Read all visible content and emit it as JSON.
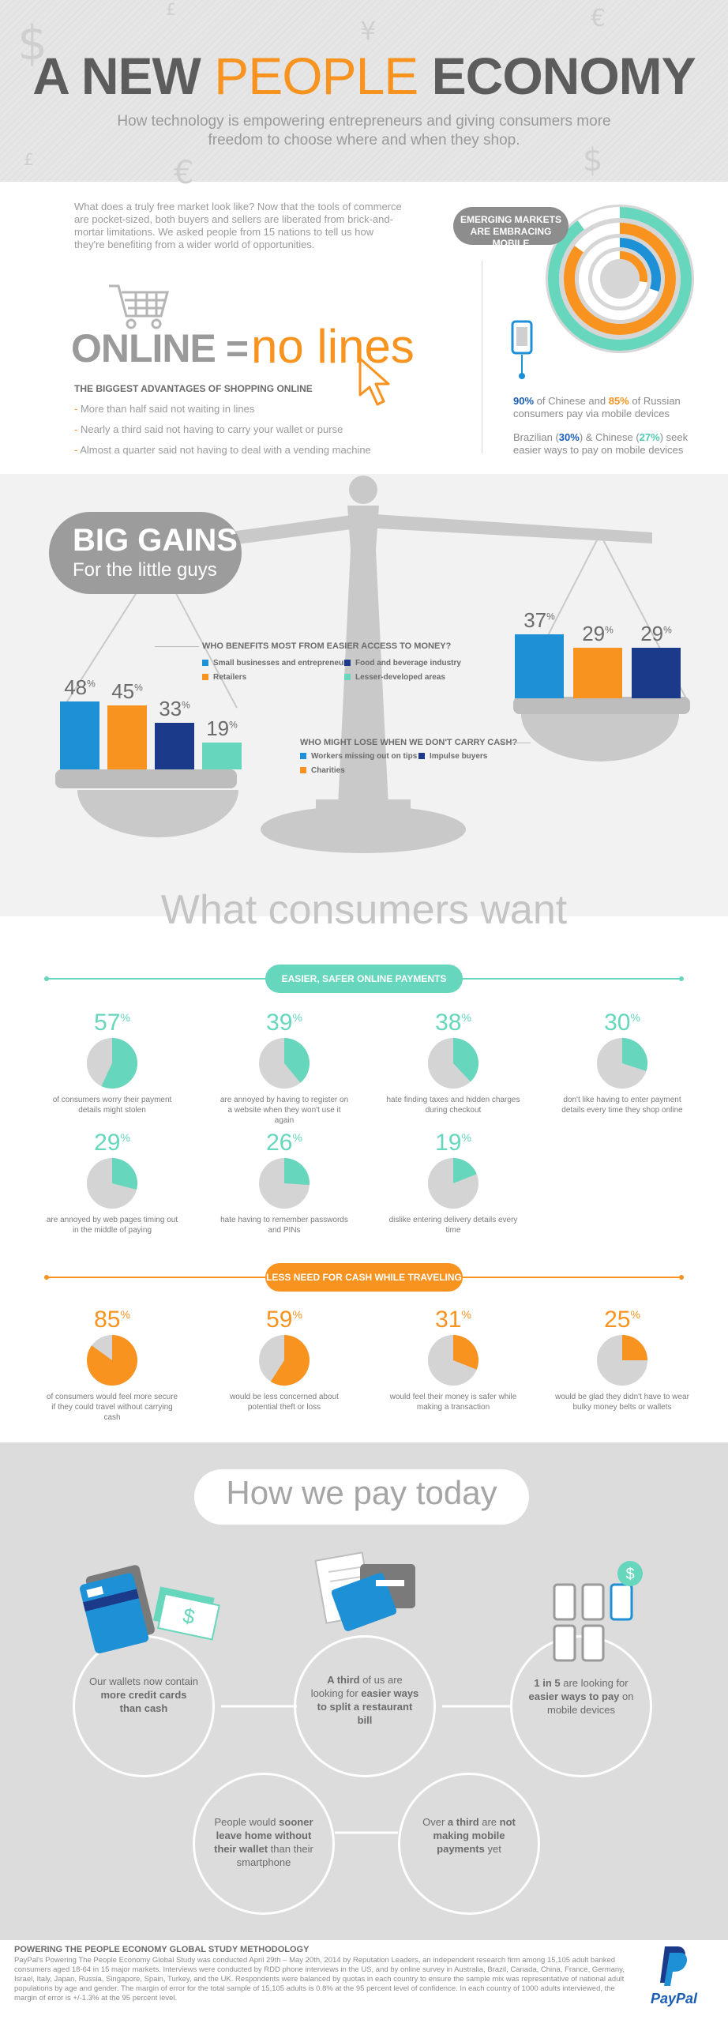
{
  "header": {
    "title_part1": "A NEW",
    "title_part2": "PEOPLE",
    "title_part3": "ECONOMY",
    "subtitle": "How technology is empowering entrepreneurs and giving consumers more freedom to choose where and when they shop."
  },
  "intro": {
    "text": "What does a truly free market look like? Now that the tools of commerce are pocket-sized, both buyers and sellers are liberated from brick-and-mortar limitations. We asked people from 15 nations to tell us how they're benefiting from a wider world of opportunities."
  },
  "online": {
    "word_online": "ONLINE",
    "equals": "=",
    "no_lines": "no lines",
    "advantages_head": "THE BIGGEST ADVANTAGES OF SHOPPING ONLINE",
    "advantages": [
      "More than half said not waiting in lines",
      "Nearly a third said not having to carry your wallet or purse",
      "Almost a quarter said not having to deal with a vending machine"
    ]
  },
  "emerging": {
    "pill": "EMERGING MARKETS ARE EMBRACING MOBILE",
    "pct_chinese": "90%",
    "text1_mid": " of Chinese and ",
    "pct_russian": "85%",
    "text1_end": " of Russian consumers pay via mobile devices",
    "text2_start": "Brazilian (",
    "pct_brazil": "30%",
    "text2_mid": ") & Chinese (",
    "pct_chinese2": "27%",
    "text2_end": ") seek easier ways to pay on mobile devices",
    "ring_values": [
      90,
      85,
      30,
      27
    ]
  },
  "big_gains": {
    "title": "BIG GAINS",
    "subtitle": "For the little guys",
    "q1": "WHO BENEFITS MOST FROM EASIER ACCESS TO MONEY?",
    "legend1": [
      "Small businesses and entrepreneurs",
      "Food and beverage industry",
      "Retailers",
      "Lesser-developed areas"
    ],
    "q2": "WHO MIGHT LOSE WHEN WE DON'T CARRY CASH?",
    "legend2": [
      "Workers missing out on tips",
      "Impulse buyers",
      "Charities"
    ],
    "colors": {
      "blue": "#1e90d6",
      "orange": "#f7931e",
      "navy": "#1b3a8a",
      "teal": "#66d6bd"
    }
  },
  "chart_data": [
    {
      "type": "bar",
      "title": "",
      "categories": [
        "Small businesses and entrepreneurs",
        "Retailers",
        "Food and beverage industry",
        "Lesser-developed areas"
      ],
      "values": [
        48,
        45,
        33,
        19
      ],
      "labels": [
        "48",
        "45",
        "33",
        "19"
      ],
      "ylim": [
        0,
        100
      ]
    },
    {
      "type": "bar",
      "title": "",
      "categories": [
        "Workers missing out on tips",
        "Charities",
        "Impulse buyers"
      ],
      "values": [
        37,
        29,
        29
      ],
      "labels": [
        "37",
        "29",
        "29"
      ],
      "ylim": [
        0,
        100
      ]
    }
  ],
  "consumers": {
    "title": "What consumers want",
    "sec1": "EASIER, SAFER ONLINE PAYMENTS",
    "sec2": "LESS NEED FOR CASH WHILE TRAVELING",
    "teal_pies": [
      {
        "pct": "57",
        "value": 57,
        "caption": "of consumers worry their payment details might stolen"
      },
      {
        "pct": "39",
        "value": 39,
        "caption": "are annoyed by having to register on a website when they won't use it again"
      },
      {
        "pct": "38",
        "value": 38,
        "caption": "hate finding taxes and hidden charges during checkout"
      },
      {
        "pct": "30",
        "value": 30,
        "caption": "don't like having to enter payment details every time they shop online"
      },
      {
        "pct": "29",
        "value": 29,
        "caption": "are annoyed by web pages timing out in the middle of paying"
      },
      {
        "pct": "26",
        "value": 26,
        "caption": "hate having to remember passwords and PINs"
      },
      {
        "pct": "19",
        "value": 19,
        "caption": "dislike entering delivery details every time"
      }
    ],
    "orange_pies": [
      {
        "pct": "85",
        "value": 85,
        "caption": "of consumers would feel more secure if they could travel without carrying cash"
      },
      {
        "pct": "59",
        "value": 59,
        "caption": "would be less concerned about potential theft or loss"
      },
      {
        "pct": "31",
        "value": 31,
        "caption": "would feel their money is safer while making a transaction"
      },
      {
        "pct": "25",
        "value": 25,
        "caption": "would be glad they didn't have to wear bulky money belts or wallets"
      }
    ],
    "pct_sign": "%"
  },
  "pay_today": {
    "title": "How we pay today",
    "c1_a": "Our wallets now contain ",
    "c1_b": "more credit cards than cash",
    "c2_a": "A third",
    "c2_b": " of us are looking for ",
    "c2_c": "easier ways to split a restaurant bill",
    "c3_a": "1 in 5",
    "c3_b": " are looking for ",
    "c3_c": "easier ways to pay",
    "c3_d": " on mobile devices",
    "c4_a": "People would ",
    "c4_b": "sooner leave home without their wallet",
    "c4_c": " than their smartphone",
    "c5_a": "Over ",
    "c5_b": "a third",
    "c5_c": " are ",
    "c5_d": "not making mobile payments",
    "c5_e": " yet",
    "dollar": "$"
  },
  "methodology": {
    "head": "POWERING THE PEOPLE ECONOMY GLOBAL STUDY METHODOLOGY",
    "body": "PayPal's Powering The People Economy Global Study was conducted April 29th – May 20th, 2014 by Reputation Leaders, an independent research firm among 15,105 adult banked consumers aged 18-64 in 15 major markets. Interviews were conducted by RDD phone interviews in the US, and by online survey in Australia, Brazil, Canada, China, France, Germany, Israel, Italy, Japan, Russia, Singapore, Spain, Turkey, and the UK. Respondents were balanced by quotas in each country to ensure the sample mix was representative of national adult populations by age and gender. The margin of error for the total sample of 15,105 adults is 0.8% at the 95 percent level of confidence. In each country of 1000 adults interviewed, the margin of error is +/-1.3% at the 95 percent level.",
    "brand": "PayPal"
  }
}
